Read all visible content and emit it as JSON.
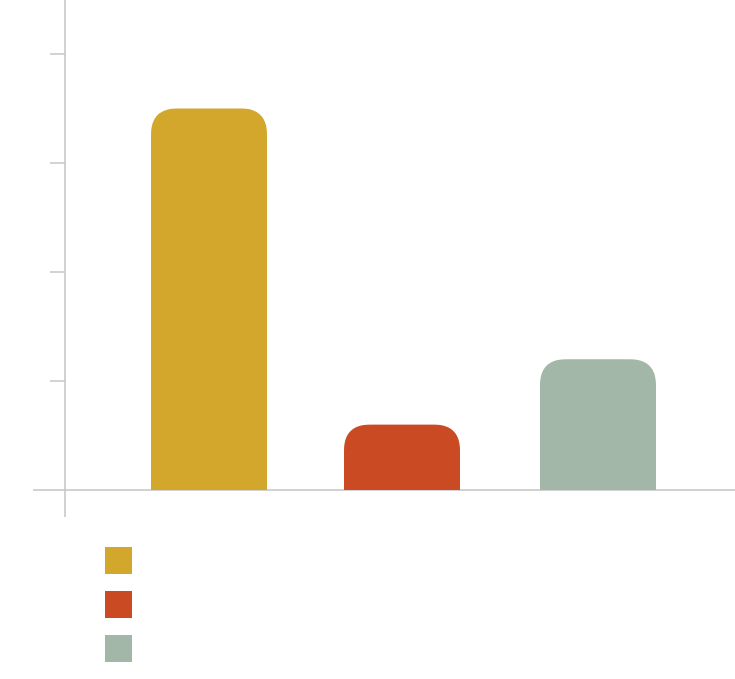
{
  "chart_data": {
    "type": "bar",
    "categories": [
      "",
      "",
      ""
    ],
    "values": [
      3.5,
      0.6,
      1.2
    ],
    "ylim": [
      -0.25,
      4.5
    ],
    "yticks": [
      0,
      1,
      2,
      3,
      4
    ],
    "colors": [
      "#d3a62c",
      "#c94a23",
      "#a3b7a8"
    ],
    "legend": {
      "placement": "bottom-left",
      "entries": [
        {
          "label": "",
          "color": "#d3a62c"
        },
        {
          "label": "",
          "color": "#c94a23"
        },
        {
          "label": "",
          "color": "#a3b7a8"
        }
      ]
    },
    "grid": false
  }
}
